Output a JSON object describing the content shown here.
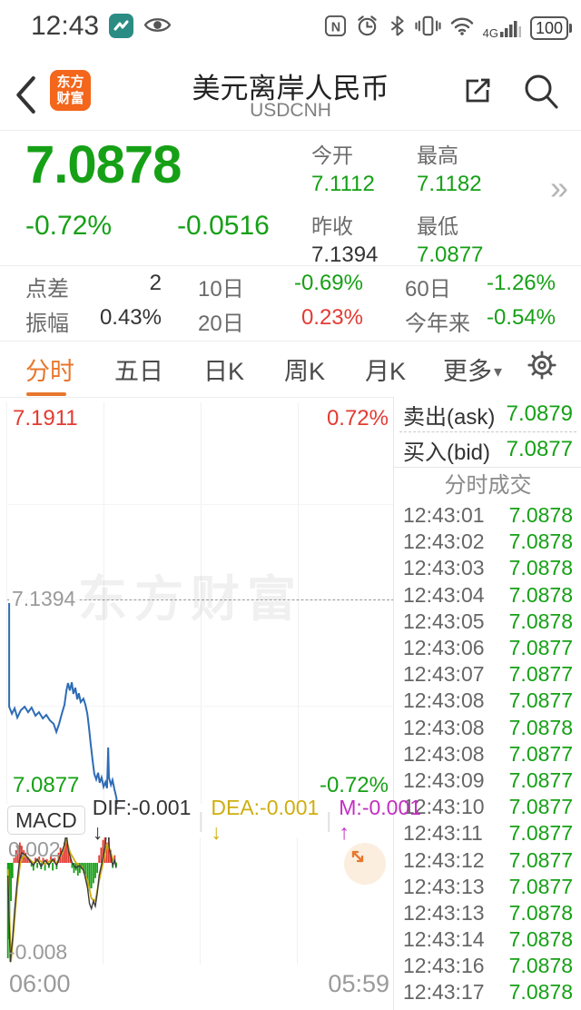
{
  "status_bar": {
    "time": "12:43",
    "network": "4G",
    "battery": "100",
    "icons": [
      "app-teal-icon",
      "eye-icon",
      "nfc-icon",
      "alarm-icon",
      "bluetooth-icon",
      "vibrate-icon",
      "wifi-icon",
      "signal-icon",
      "battery-icon"
    ]
  },
  "header": {
    "title": "美元离岸人民币",
    "subtitle": "USDCNH",
    "logo_line1": "东方",
    "logo_line2": "财富",
    "icons": [
      "back-icon",
      "share-icon",
      "search-icon"
    ]
  },
  "quote": {
    "price": "7.0878",
    "change_pct": "-0.72%",
    "change_val": "-0.0516",
    "more_chevron": "»",
    "fields": [
      {
        "label": "今开",
        "value": "7.1112",
        "color": "green"
      },
      {
        "label": "最高",
        "value": "7.1182",
        "color": "green"
      },
      {
        "label": "昨收",
        "value": "7.1394",
        "color": "dark"
      },
      {
        "label": "最低",
        "value": "7.0877",
        "color": "green"
      }
    ]
  },
  "stats": {
    "rows": [
      [
        {
          "label": "点差",
          "value": "2",
          "color": "dark"
        },
        {
          "label": "10日",
          "value": "-0.69%",
          "color": "green"
        },
        {
          "label": "60日",
          "value": "-1.26%",
          "color": "green"
        }
      ],
      [
        {
          "label": "振幅",
          "value": "0.43%",
          "color": "dark"
        },
        {
          "label": "20日",
          "value": "0.23%",
          "color": "red"
        },
        {
          "label": "今年来",
          "value": "-0.54%",
          "color": "green"
        }
      ]
    ]
  },
  "tabs": {
    "items": [
      {
        "label": "分时",
        "active": true
      },
      {
        "label": "五日",
        "active": false
      },
      {
        "label": "日K",
        "active": false
      },
      {
        "label": "周K",
        "active": false
      },
      {
        "label": "月K",
        "active": false
      }
    ],
    "more_label": "更多",
    "more_caret": "▾"
  },
  "chart": {
    "high_label": "7.1911",
    "high_pct": "0.72%",
    "mid_label": "7.1394",
    "low_label": "7.0877",
    "low_pct": "-0.72%",
    "watermark": "东方财富",
    "x_start": "06:00",
    "x_end": "05:59"
  },
  "macd": {
    "button_label": "MACD",
    "button_caret": "▾",
    "dif_text": "DIF:-0.001",
    "dif_arrow": "↓",
    "dea_text": "DEA:-0.001",
    "dea_arrow": "↓",
    "m_text": "M:-0.001",
    "m_arrow": "↑",
    "pipe": "|",
    "y_top": "0.002",
    "y_bottom": "-0.008"
  },
  "order_book": {
    "ask_label": "卖出(ask)",
    "ask_price": "7.0879",
    "bid_label": "买入(bid)",
    "bid_price": "7.0877",
    "list_title": "分时成交",
    "ticks": [
      {
        "time": "12:43:01",
        "price": "7.0878"
      },
      {
        "time": "12:43:02",
        "price": "7.0878"
      },
      {
        "time": "12:43:03",
        "price": "7.0878"
      },
      {
        "time": "12:43:04",
        "price": "7.0878"
      },
      {
        "time": "12:43:05",
        "price": "7.0878"
      },
      {
        "time": "12:43:06",
        "price": "7.0877"
      },
      {
        "time": "12:43:07",
        "price": "7.0877"
      },
      {
        "time": "12:43:08",
        "price": "7.0877"
      },
      {
        "time": "12:43:08",
        "price": "7.0878"
      },
      {
        "time": "12:43:08",
        "price": "7.0877"
      },
      {
        "time": "12:43:09",
        "price": "7.0877"
      },
      {
        "time": "12:43:10",
        "price": "7.0877"
      },
      {
        "time": "12:43:11",
        "price": "7.0877"
      },
      {
        "time": "12:43:12",
        "price": "7.0877"
      },
      {
        "time": "12:43:13",
        "price": "7.0877"
      },
      {
        "time": "12:43:13",
        "price": "7.0878"
      },
      {
        "time": "12:43:14",
        "price": "7.0878"
      },
      {
        "time": "12:43:16",
        "price": "7.0878"
      },
      {
        "time": "12:43:17",
        "price": "7.0878"
      }
    ]
  },
  "colors": {
    "green": "#16a016",
    "red": "#e23b32",
    "orange_accent": "#e8762c",
    "logo_orange": "#f3661b",
    "price_line_blue": "#2e6cb5",
    "dea_yellow": "#cfae10",
    "m_magenta": "#c22ec2"
  },
  "chart_data": {
    "price": {
      "type": "line",
      "ylim": [
        7.0877,
        7.1911
      ],
      "prev_close": 7.1394,
      "open": 7.1112,
      "high": 7.1182,
      "low": 7.0877,
      "last": 7.0878,
      "x_range": [
        "06:00",
        "05:59"
      ],
      "points": [
        [
          0.005,
          7.1394
        ],
        [
          0.005,
          7.1127
        ],
        [
          0.012,
          7.1109
        ],
        [
          0.019,
          7.1123
        ],
        [
          0.026,
          7.1099
        ],
        [
          0.035,
          7.1118
        ],
        [
          0.045,
          7.1127
        ],
        [
          0.054,
          7.1113
        ],
        [
          0.063,
          7.1125
        ],
        [
          0.073,
          7.1104
        ],
        [
          0.082,
          7.1113
        ],
        [
          0.092,
          7.1097
        ],
        [
          0.101,
          7.1106
        ],
        [
          0.11,
          7.1092
        ],
        [
          0.12,
          7.1083
        ],
        [
          0.127,
          7.1062
        ],
        [
          0.134,
          7.1083
        ],
        [
          0.141,
          7.1109
        ],
        [
          0.148,
          7.1132
        ],
        [
          0.153,
          7.1169
        ],
        [
          0.157,
          7.1188
        ],
        [
          0.162,
          7.1169
        ],
        [
          0.167,
          7.119
        ],
        [
          0.171,
          7.116
        ],
        [
          0.176,
          7.1176
        ],
        [
          0.181,
          7.1146
        ],
        [
          0.185,
          7.1162
        ],
        [
          0.19,
          7.1139
        ],
        [
          0.197,
          7.1148
        ],
        [
          0.202,
          7.1132
        ],
        [
          0.207,
          7.1109
        ],
        [
          0.211,
          7.1076
        ],
        [
          0.216,
          7.1029
        ],
        [
          0.221,
          7.0987
        ],
        [
          0.225,
          7.0954
        ],
        [
          0.23,
          7.094
        ],
        [
          0.235,
          7.0957
        ],
        [
          0.239,
          7.0931
        ],
        [
          0.244,
          7.0945
        ],
        [
          0.249,
          7.0921
        ],
        [
          0.254,
          7.0933
        ],
        [
          0.258,
          7.0917
        ],
        [
          0.261,
          7.1022
        ],
        [
          0.263,
          7.0945
        ],
        [
          0.268,
          7.0926
        ],
        [
          0.272,
          7.0938
        ],
        [
          0.277,
          7.0915
        ],
        [
          0.282,
          7.0894
        ],
        [
          0.284,
          7.0877
        ]
      ]
    },
    "macd": {
      "type": "bar+line",
      "ylim": [
        -0.008,
        0.002
      ],
      "hist": [
        [
          0.004,
          -0.0075
        ],
        [
          0.008,
          -0.006
        ],
        [
          0.012,
          -0.003
        ],
        [
          0.016,
          -0.0012
        ],
        [
          0.02,
          0.0004
        ],
        [
          0.025,
          0.001
        ],
        [
          0.03,
          0.0014
        ],
        [
          0.035,
          0.0016
        ],
        [
          0.04,
          0.0013
        ],
        [
          0.045,
          0.001
        ],
        [
          0.05,
          0.0008
        ],
        [
          0.055,
          0.0005
        ],
        [
          0.06,
          0.0003
        ],
        [
          0.065,
          -0.0003
        ],
        [
          0.07,
          -0.0006
        ],
        [
          0.075,
          0.0004
        ],
        [
          0.08,
          -0.0004
        ],
        [
          0.085,
          0.0005
        ],
        [
          0.09,
          -0.0005
        ],
        [
          0.095,
          0.0004
        ],
        [
          0.1,
          -0.0006
        ],
        [
          0.105,
          0.0003
        ],
        [
          0.11,
          -0.0004
        ],
        [
          0.115,
          0.0005
        ],
        [
          0.12,
          -0.0006
        ],
        [
          0.125,
          0.0004
        ],
        [
          0.13,
          -0.0005
        ],
        [
          0.135,
          0.0008
        ],
        [
          0.14,
          0.0012
        ],
        [
          0.145,
          0.001
        ],
        [
          0.15,
          0.0016
        ],
        [
          0.155,
          0.0022
        ],
        [
          0.16,
          0.0012
        ],
        [
          0.165,
          0.0006
        ],
        [
          0.17,
          -0.0004
        ],
        [
          0.175,
          -0.0008
        ],
        [
          0.18,
          -0.0006
        ],
        [
          0.185,
          -0.001
        ],
        [
          0.19,
          -0.0008
        ],
        [
          0.195,
          -0.0005
        ],
        [
          0.2,
          -0.0008
        ],
        [
          0.205,
          -0.0012
        ],
        [
          0.21,
          -0.0018
        ],
        [
          0.215,
          -0.0022
        ],
        [
          0.22,
          -0.002
        ],
        [
          0.225,
          -0.0016
        ],
        [
          0.23,
          -0.0012
        ],
        [
          0.235,
          -0.0008
        ],
        [
          0.24,
          0.0006
        ],
        [
          0.245,
          0.0012
        ],
        [
          0.25,
          0.0018
        ],
        [
          0.255,
          0.0022
        ],
        [
          0.26,
          0.0016
        ],
        [
          0.265,
          0.002
        ],
        [
          0.27,
          0.001
        ],
        [
          0.275,
          -0.0004
        ],
        [
          0.28,
          0.0006
        ],
        [
          0.284,
          -0.0003
        ]
      ],
      "dif": [
        [
          0.004,
          -0.001
        ],
        [
          0.01,
          -0.0078
        ],
        [
          0.016,
          -0.006
        ],
        [
          0.022,
          -0.0035
        ],
        [
          0.028,
          -0.0015
        ],
        [
          0.034,
          0.0002
        ],
        [
          0.04,
          0.0008
        ],
        [
          0.05,
          0.0006
        ],
        [
          0.06,
          0.0002
        ],
        [
          0.07,
          -0.0002
        ],
        [
          0.08,
          0.0003
        ],
        [
          0.09,
          -0.0003
        ],
        [
          0.1,
          0.0002
        ],
        [
          0.11,
          -0.0002
        ],
        [
          0.12,
          0.0003
        ],
        [
          0.13,
          -0.0002
        ],
        [
          0.14,
          0.0006
        ],
        [
          0.15,
          0.0014
        ],
        [
          0.155,
          0.0024
        ],
        [
          0.16,
          0.001
        ],
        [
          0.17,
          0.0
        ],
        [
          0.18,
          -0.0004
        ],
        [
          0.19,
          -0.0002
        ],
        [
          0.2,
          -0.0006
        ],
        [
          0.21,
          -0.002
        ],
        [
          0.215,
          -0.0032
        ],
        [
          0.22,
          -0.0036
        ],
        [
          0.225,
          -0.003
        ],
        [
          0.23,
          -0.0034
        ],
        [
          0.235,
          -0.0024
        ],
        [
          0.24,
          -0.001
        ],
        [
          0.25,
          0.0004
        ],
        [
          0.255,
          0.0012
        ],
        [
          0.262,
          0.0032
        ],
        [
          0.266,
          0.0012
        ],
        [
          0.27,
          0.0006
        ],
        [
          0.275,
          -0.0002
        ],
        [
          0.28,
          0.0002
        ],
        [
          0.284,
          -0.0004
        ]
      ],
      "dea": [
        [
          0.004,
          -0.0005
        ],
        [
          0.012,
          -0.0078
        ],
        [
          0.02,
          -0.005
        ],
        [
          0.028,
          -0.002
        ],
        [
          0.036,
          0.0
        ],
        [
          0.046,
          0.0006
        ],
        [
          0.056,
          0.0004
        ],
        [
          0.07,
          0.0
        ],
        [
          0.085,
          0.0002
        ],
        [
          0.1,
          -0.0001
        ],
        [
          0.115,
          0.0002
        ],
        [
          0.13,
          0.0
        ],
        [
          0.145,
          0.0008
        ],
        [
          0.155,
          0.0018
        ],
        [
          0.165,
          0.0008
        ],
        [
          0.18,
          0.0
        ],
        [
          0.195,
          -0.0003
        ],
        [
          0.21,
          -0.0014
        ],
        [
          0.22,
          -0.0028
        ],
        [
          0.23,
          -0.003
        ],
        [
          0.24,
          -0.0014
        ],
        [
          0.25,
          0.0
        ],
        [
          0.26,
          0.0014
        ],
        [
          0.268,
          0.001
        ],
        [
          0.276,
          0.0002
        ],
        [
          0.284,
          0.0
        ]
      ]
    }
  }
}
